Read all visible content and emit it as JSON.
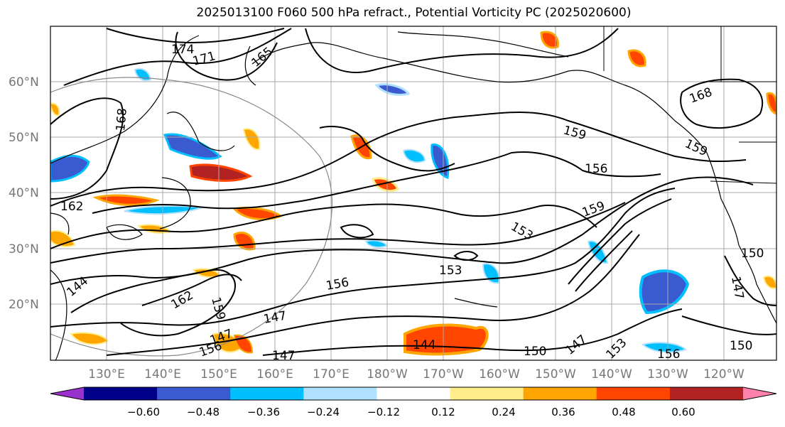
{
  "title": "2025013100 F060 500 hPa refract., Potential Vorticity PC (2025020600)",
  "lat_labels": [
    "60°N",
    "50°N",
    "40°N",
    "30°N",
    "20°N"
  ],
  "lon_labels": [
    "130°E",
    "140°E",
    "150°E",
    "160°E",
    "170°E",
    "180°W",
    "170°W",
    "160°W",
    "150°W",
    "140°W",
    "130°W",
    "120°W"
  ],
  "contour_labels": [
    "174",
    "171",
    "165",
    "168",
    "162",
    "159",
    "156",
    "159",
    "153",
    "153",
    "156",
    "159",
    "162",
    "147",
    "144",
    "147",
    "156",
    "147",
    "144",
    "150",
    "147",
    "153",
    "156",
    "150",
    "147",
    "150",
    "168",
    "159"
  ],
  "colorbar": {
    "ticks": [
      "−0.60",
      "−0.48",
      "−0.36",
      "−0.24",
      "−0.12",
      "0.12",
      "0.24",
      "0.36",
      "0.48",
      "0.60"
    ],
    "colors": [
      "#9932cc",
      "#00008b",
      "#3a5bd0",
      "#00bfff",
      "#b0e2ff",
      "#ffffff",
      "#ffec8b",
      "#ffa500",
      "#ff4500",
      "#b22222",
      "#ff82ab"
    ]
  }
}
